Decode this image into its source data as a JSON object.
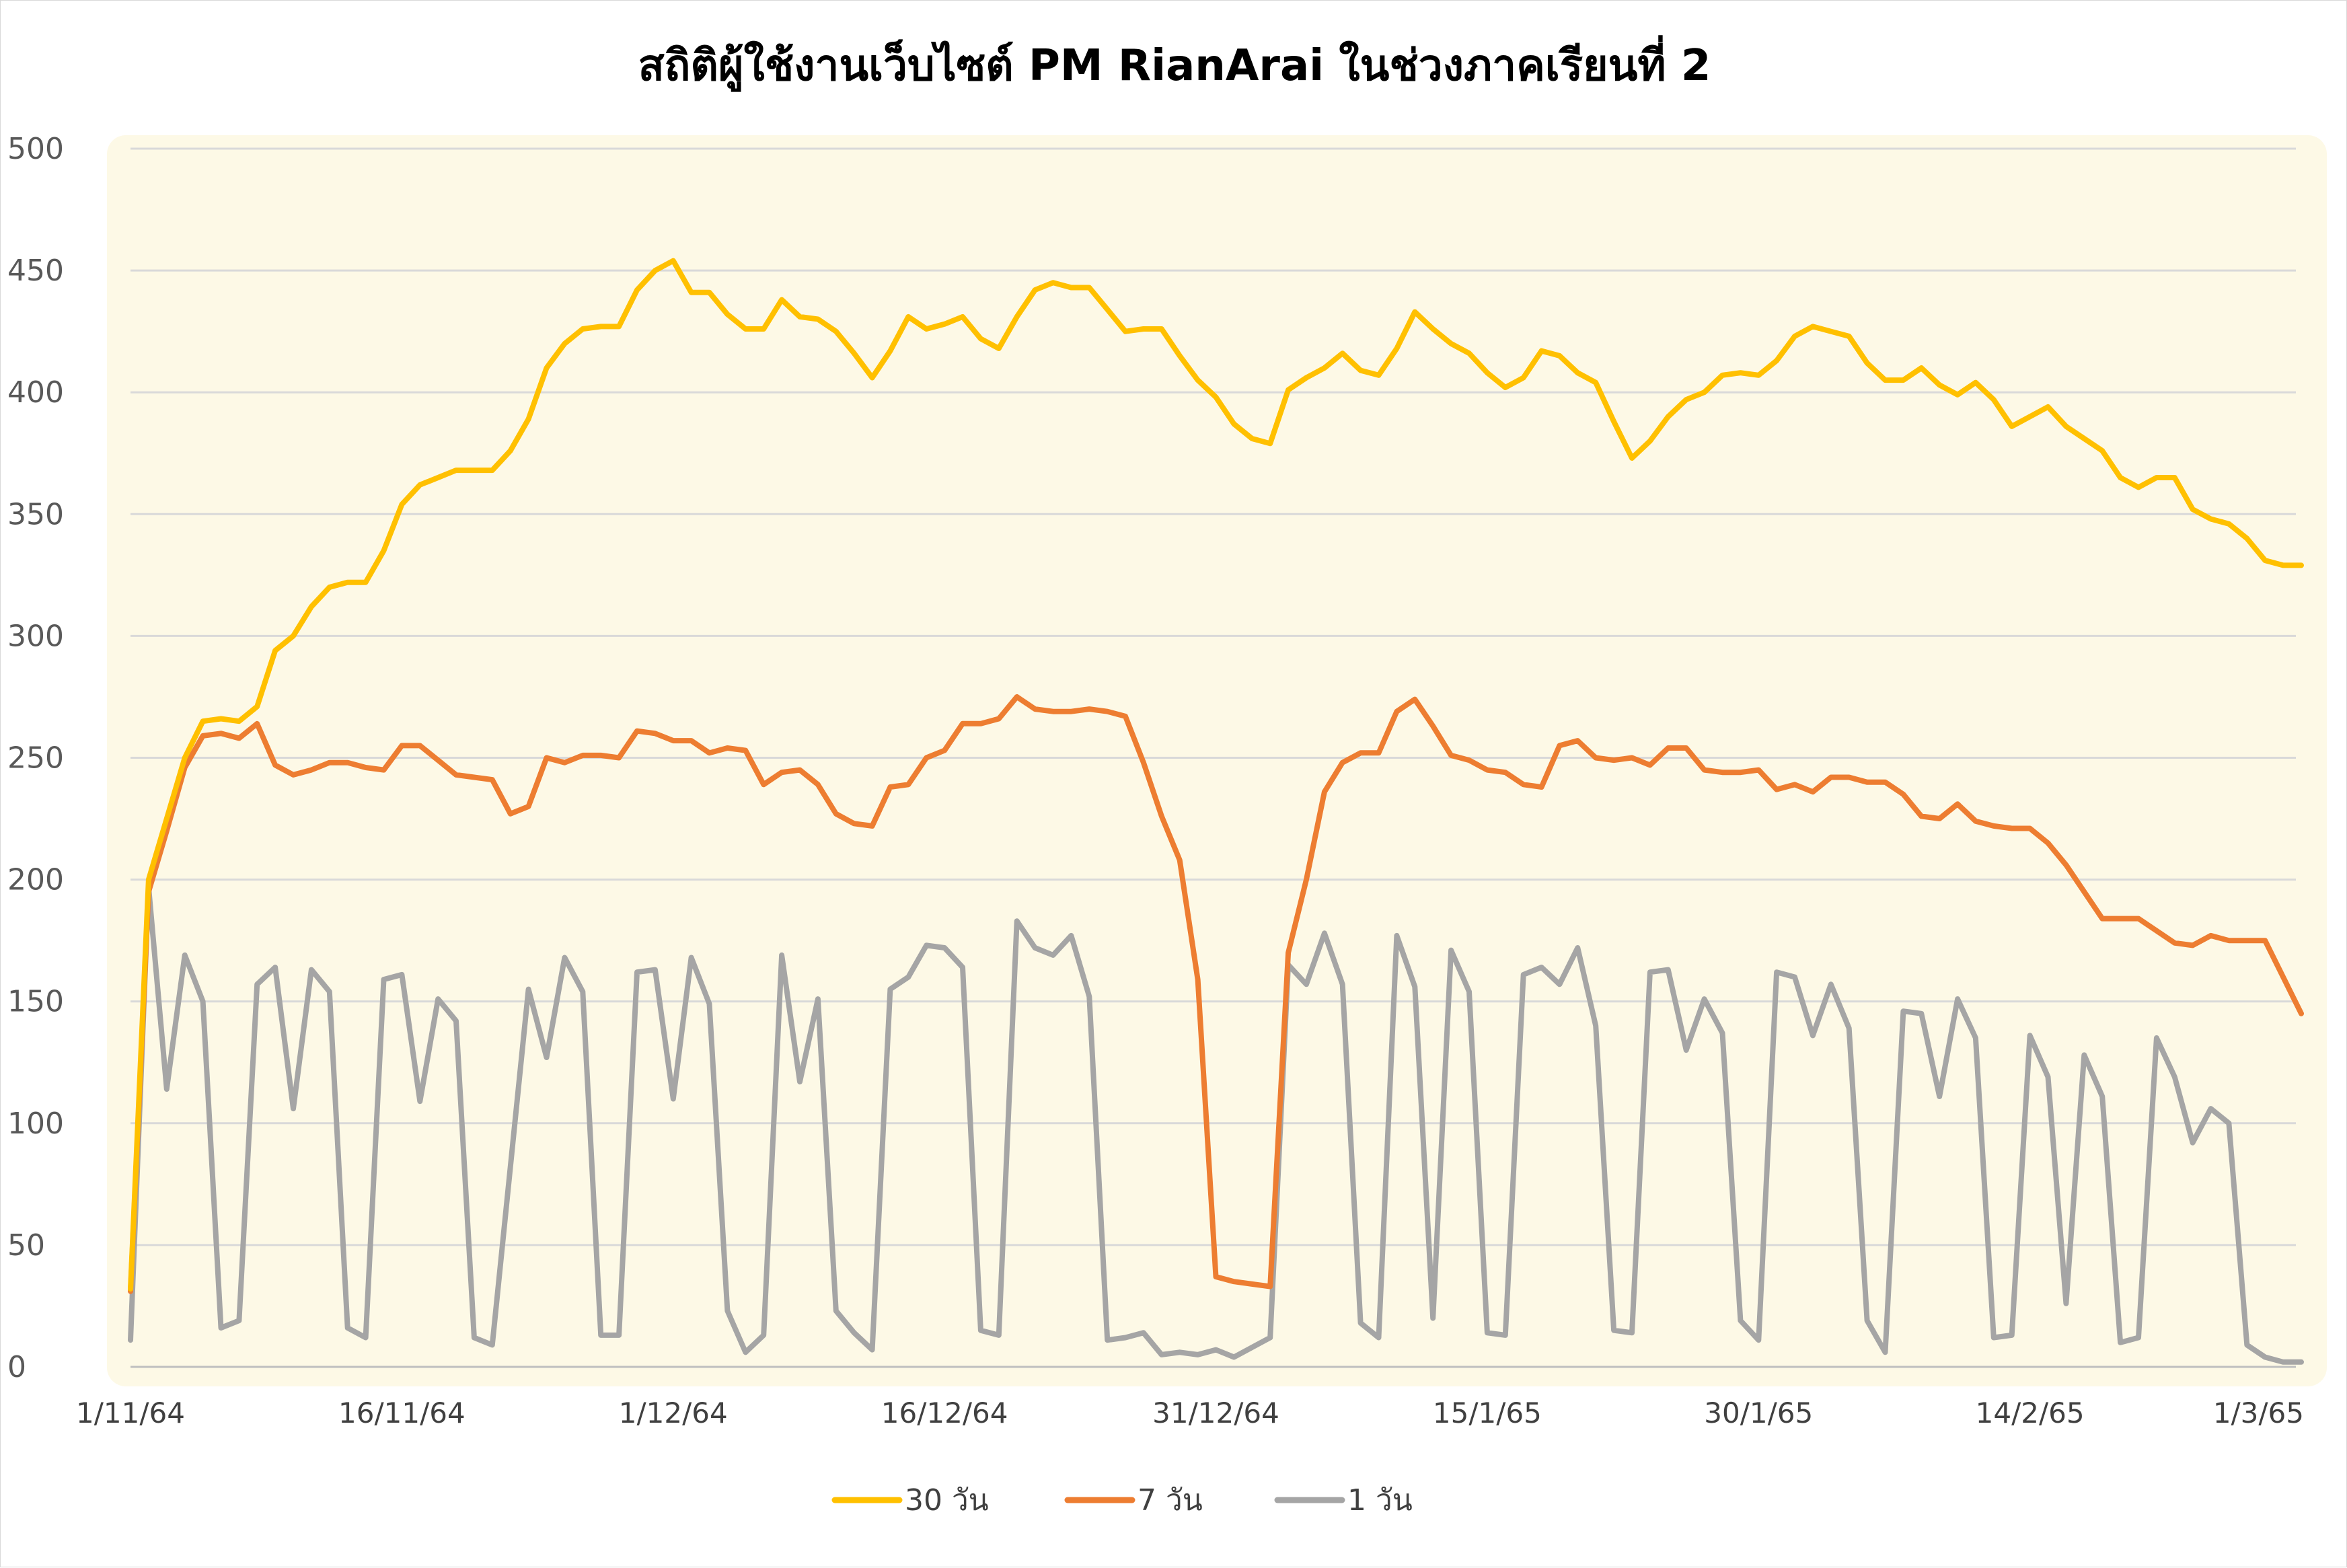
{
  "chart_data": {
    "type": "line",
    "title": "สถิติผู้ใช้งานเว็บไซต์ PM RianArai ในช่วงภาคเรียนที่ 2",
    "xlabel": "",
    "ylabel": "",
    "ylim": [
      0,
      500
    ],
    "yticks": [
      "0",
      "50",
      "100",
      "150",
      "200",
      "250",
      "300",
      "350",
      "400",
      "450",
      "500"
    ],
    "xticks": [
      {
        "day": 1,
        "label": "1/11/64"
      },
      {
        "day": 16,
        "label": "16/11/64"
      },
      {
        "day": 31,
        "label": "1/12/64"
      },
      {
        "day": 46,
        "label": "16/12/64"
      },
      {
        "day": 61,
        "label": "31/12/64"
      },
      {
        "day": 76,
        "label": "15/1/65"
      },
      {
        "day": 91,
        "label": "30/1/65"
      },
      {
        "day": 106,
        "label": "14/2/65"
      },
      {
        "day": 121,
        "label": "1/3/65"
      }
    ],
    "x_domain": [
      1,
      121
    ],
    "grid": true,
    "legend": "bottom",
    "background_color": "#fdf9e6",
    "series": [
      {
        "name": "30 วัน",
        "color": "#ffc000",
        "values": [
          32,
          200,
          225,
          250,
          265,
          266,
          265,
          271,
          294,
          300,
          312,
          320,
          322,
          322,
          335,
          354,
          362,
          365,
          368,
          368,
          368,
          376,
          389,
          410,
          420,
          426,
          427,
          427,
          442,
          450,
          454,
          441,
          441,
          432,
          426,
          426,
          438,
          431,
          430,
          425,
          416,
          406,
          417,
          431,
          426,
          428,
          431,
          422,
          418,
          431,
          442,
          445,
          443,
          443,
          434,
          425,
          426,
          426,
          415,
          405,
          398,
          387,
          381,
          379,
          401,
          406,
          410,
          416,
          409,
          407,
          418,
          433,
          426,
          420,
          416,
          408,
          402,
          406,
          417,
          415,
          408,
          404,
          388,
          373,
          380,
          390,
          397,
          400,
          407,
          408,
          407,
          413,
          423,
          427,
          425,
          423,
          412,
          405,
          405,
          410,
          403,
          399,
          404,
          397,
          386,
          390,
          394,
          386,
          381,
          376,
          365,
          361,
          365,
          365,
          352,
          348,
          346,
          340,
          331,
          329,
          329
        ]
      },
      {
        "name": "7 วัน",
        "color": "#ed7d31",
        "values": [
          31,
          195,
          220,
          246,
          259,
          260,
          258,
          264,
          247,
          243,
          245,
          248,
          248,
          246,
          245,
          255,
          255,
          249,
          243,
          242,
          241,
          227,
          230,
          250,
          248,
          251,
          251,
          250,
          261,
          260,
          257,
          257,
          252,
          254,
          253,
          239,
          244,
          245,
          239,
          227,
          223,
          222,
          238,
          239,
          250,
          253,
          264,
          264,
          266,
          275,
          270,
          269,
          269,
          270,
          269,
          267,
          248,
          226,
          208,
          159,
          37,
          35,
          34,
          33,
          170,
          200,
          236,
          248,
          252,
          252,
          269,
          274,
          263,
          251,
          249,
          245,
          244,
          239,
          238,
          255,
          257,
          250,
          249,
          250,
          247,
          254,
          254,
          245,
          244,
          244,
          245,
          237,
          239,
          236,
          242,
          242,
          240,
          240,
          235,
          226,
          225,
          231,
          224,
          222,
          221,
          221,
          215,
          206,
          195,
          184,
          184,
          184,
          179,
          174,
          173,
          177,
          175,
          175,
          175,
          160,
          145
        ]
      },
      {
        "name": "1 วัน",
        "color": "#a5a5a5",
        "values": [
          11,
          197,
          114,
          169,
          150,
          16,
          19,
          157,
          164,
          106,
          163,
          154,
          16,
          12,
          159,
          161,
          109,
          151,
          142,
          12,
          9,
          82,
          155,
          127,
          168,
          154,
          13,
          13,
          162,
          163,
          110,
          168,
          149,
          23,
          6,
          13,
          169,
          117,
          151,
          23,
          14,
          7,
          155,
          160,
          173,
          172,
          164,
          15,
          13,
          183,
          172,
          169,
          177,
          152,
          11,
          12,
          14,
          5,
          6,
          5,
          7,
          4,
          8,
          12,
          165,
          157,
          178,
          157,
          18,
          12,
          177,
          156,
          20,
          171,
          154,
          14,
          13,
          161,
          164,
          157,
          172,
          140,
          15,
          14,
          162,
          163,
          130,
          151,
          137,
          19,
          11,
          162,
          160,
          136,
          157,
          139,
          19,
          6,
          146,
          145,
          111,
          151,
          135,
          12,
          13,
          136,
          119,
          26,
          128,
          111,
          10,
          12,
          135,
          119,
          92,
          106,
          100,
          9,
          4,
          2,
          2
        ]
      }
    ]
  }
}
